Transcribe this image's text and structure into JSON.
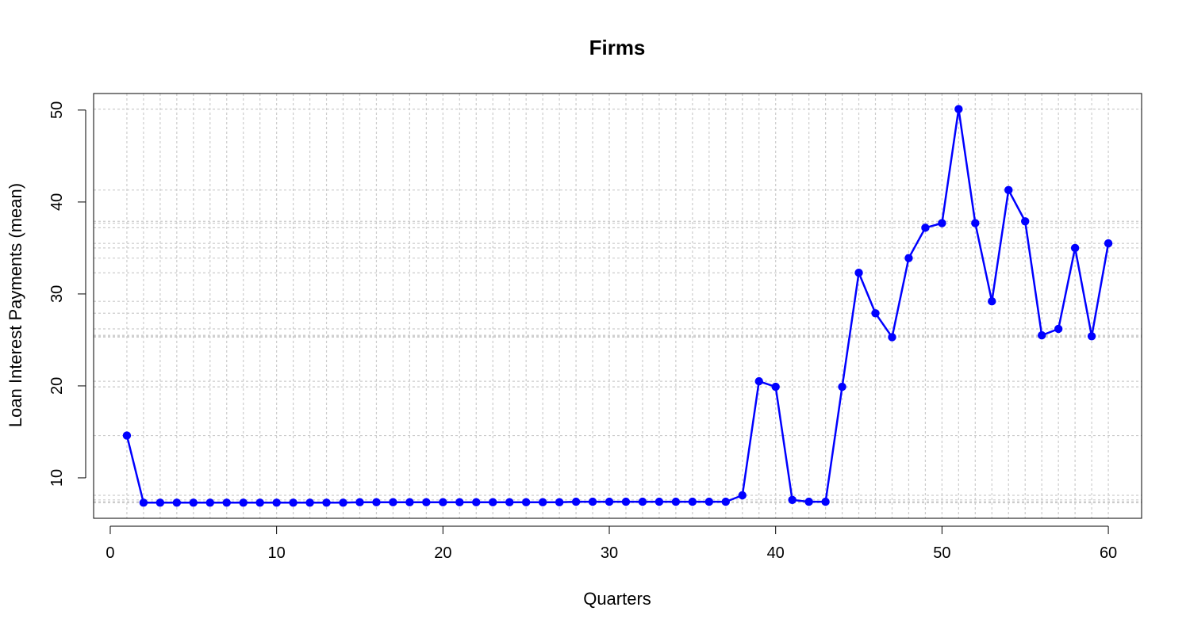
{
  "chart_data": {
    "type": "line",
    "title": "Firms",
    "xlabel": "Quarters",
    "ylabel": "Loan Interest Payments (mean)",
    "xlim": [
      -1,
      62
    ],
    "ylim": [
      5.6,
      51.8
    ],
    "x_ticks": [
      0,
      10,
      20,
      30,
      40,
      50,
      60
    ],
    "y_ticks": [
      10,
      20,
      30,
      40,
      50
    ],
    "x_tick_labels": [
      "0",
      "10",
      "20",
      "30",
      "40",
      "50",
      "60"
    ],
    "y_tick_labels": [
      "10",
      "20",
      "30",
      "40",
      "50"
    ],
    "grid": true,
    "legend": "none",
    "series": [
      {
        "color": "#0000ff",
        "x": [
          1,
          2,
          3,
          4,
          5,
          6,
          7,
          8,
          9,
          10,
          11,
          12,
          13,
          14,
          15,
          16,
          17,
          18,
          19,
          20,
          21,
          22,
          23,
          24,
          25,
          26,
          27,
          28,
          29,
          30,
          31,
          32,
          33,
          34,
          35,
          36,
          37,
          38,
          39,
          40,
          41,
          42,
          43,
          44,
          45,
          46,
          47,
          48,
          49,
          50,
          51,
          52,
          53,
          54,
          55,
          56,
          57,
          58,
          59,
          60
        ],
        "values": [
          14.6,
          7.3,
          7.3,
          7.3,
          7.3,
          7.3,
          7.3,
          7.3,
          7.3,
          7.3,
          7.3,
          7.3,
          7.3,
          7.3,
          7.35,
          7.35,
          7.35,
          7.35,
          7.35,
          7.35,
          7.35,
          7.35,
          7.35,
          7.35,
          7.35,
          7.35,
          7.35,
          7.4,
          7.4,
          7.4,
          7.4,
          7.4,
          7.4,
          7.4,
          7.4,
          7.4,
          7.4,
          8.1,
          20.5,
          19.9,
          7.6,
          7.4,
          7.4,
          19.9,
          32.3,
          27.9,
          25.3,
          33.9,
          37.2,
          37.7,
          50.1,
          37.7,
          29.2,
          41.3,
          37.9,
          25.5,
          26.2,
          35.0,
          25.4,
          35.5
        ]
      }
    ]
  }
}
